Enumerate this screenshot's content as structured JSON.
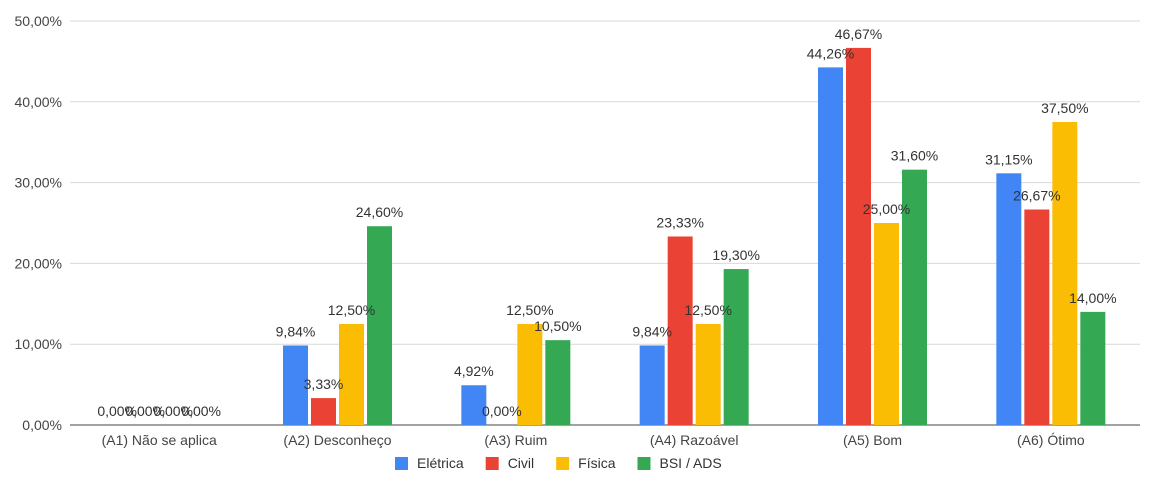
{
  "chart_data": {
    "type": "bar",
    "title": "",
    "xlabel": "",
    "ylabel": "",
    "ylim": [
      0,
      50
    ],
    "yticks": [
      {
        "value": 0,
        "label": "0,00%"
      },
      {
        "value": 10,
        "label": "10,00%"
      },
      {
        "value": 20,
        "label": "20,00%"
      },
      {
        "value": 30,
        "label": "30,00%"
      },
      {
        "value": 40,
        "label": "40,00%"
      },
      {
        "value": 50,
        "label": "50,00%"
      }
    ],
    "grid": true,
    "legend_position": "bottom",
    "categories": [
      "(A1) Não se aplica",
      "(A2) Desconheço",
      "(A3) Ruim",
      "(A4) Razoável",
      "(A5) Bom",
      "(A6) Ótimo"
    ],
    "series": [
      {
        "name": "Elétrica",
        "color": "#4285F4",
        "values": [
          0,
          9.84,
          4.92,
          9.84,
          44.26,
          31.15
        ],
        "labels": [
          "0,00%",
          "9,84%",
          "4,92%",
          "9,84%",
          "44,26%",
          "31,15%"
        ]
      },
      {
        "name": "Civil",
        "color": "#EA4335",
        "values": [
          0,
          3.33,
          0,
          23.33,
          46.67,
          26.67
        ],
        "labels": [
          "0,00%",
          "3,33%",
          "0,00%",
          "23,33%",
          "46,67%",
          "26,67%"
        ]
      },
      {
        "name": "Física",
        "color": "#FBBC04",
        "values": [
          0,
          12.5,
          12.5,
          12.5,
          25.0,
          37.5
        ],
        "labels": [
          "0,00%",
          "12,50%",
          "12,50%",
          "12,50%",
          "25,00%",
          "37,50%"
        ]
      },
      {
        "name": "BSI / ADS",
        "color": "#34A853",
        "values": [
          0,
          24.6,
          10.5,
          19.3,
          31.6,
          14.0
        ],
        "labels": [
          "0,00%",
          "24,60%",
          "10,50%",
          "19,30%",
          "31,60%",
          "14,00%"
        ]
      }
    ]
  }
}
